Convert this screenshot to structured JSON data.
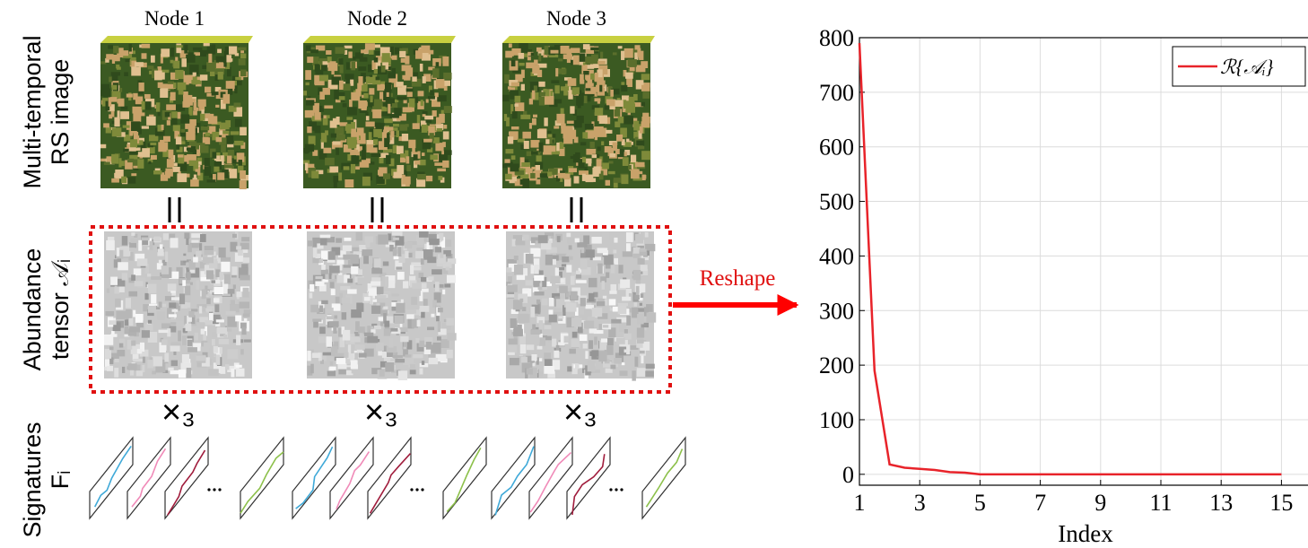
{
  "nodes": [
    {
      "label": "Node 1"
    },
    {
      "label": "Node 2"
    },
    {
      "label": "Node 3"
    }
  ],
  "row_labels": {
    "image": [
      "Multi-temporal",
      "RS image"
    ],
    "abundance": [
      "Abundance",
      "tensor 𝒜ᵢ"
    ],
    "signatures": [
      "Signatures",
      "Fᵢ"
    ]
  },
  "mode_product": "×₃",
  "arrow_label": "Reshape",
  "chart_data": {
    "type": "line",
    "x_label": "Index",
    "x": [
      1,
      1.5,
      2,
      2.5,
      3,
      3.5,
      4,
      4.5,
      5,
      5.5,
      6,
      6.5,
      7,
      7.5,
      8,
      8.5,
      9,
      9.5,
      10,
      10.5,
      11,
      11.5,
      12,
      12.5,
      13,
      13.5,
      14,
      14.5,
      15
    ],
    "series": [
      {
        "name": "ℛ{𝒜ᵢ}",
        "color": "#e8232a",
        "values": [
          790,
          190,
          18,
          12,
          10,
          8,
          4,
          3,
          0,
          0,
          0,
          0,
          0,
          0,
          0,
          0,
          0,
          0,
          0,
          0,
          0,
          0,
          0,
          0,
          0,
          0,
          0,
          0,
          0
        ]
      }
    ],
    "xlim": [
      1,
      16
    ],
    "ylim": [
      -20,
      800
    ],
    "xticks": [
      1,
      3,
      5,
      7,
      9,
      11,
      13,
      15
    ],
    "yticks": [
      0,
      100,
      200,
      300,
      400,
      500,
      600,
      700,
      800
    ],
    "grid": true,
    "legend": "top-right"
  }
}
